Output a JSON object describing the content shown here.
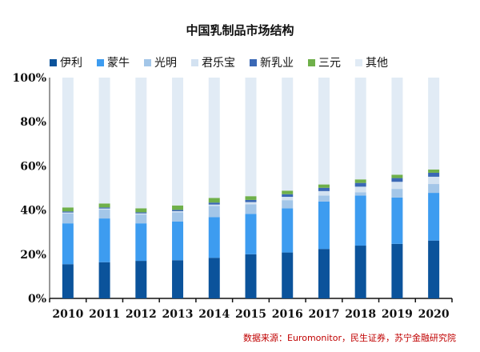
{
  "chart_data": {
    "type": "bar",
    "stacked": true,
    "title": "中国乳制品市场结构",
    "categories": [
      "2010",
      "2011",
      "2012",
      "2013",
      "2014",
      "2015",
      "2016",
      "2017",
      "2018",
      "2019",
      "2020"
    ],
    "ylim": [
      0,
      100
    ],
    "yticks": [
      "0%",
      "20%",
      "40%",
      "60%",
      "80%",
      "100%"
    ],
    "legend_position": "top",
    "grid": false,
    "series": [
      {
        "name": "伊利",
        "color": "#0b539b",
        "values": [
          15.5,
          16.4,
          17.0,
          17.3,
          18.4,
          20.0,
          20.8,
          22.4,
          23.9,
          24.7,
          26.2
        ]
      },
      {
        "name": "蒙牛",
        "color": "#3d9cf0",
        "values": [
          18.5,
          19.8,
          17.0,
          17.5,
          18.4,
          18.3,
          20.0,
          21.5,
          22.7,
          21.0,
          21.6
        ]
      },
      {
        "name": "光明",
        "color": "#a3c6e8",
        "values": [
          4.4,
          4.0,
          4.0,
          4.2,
          5.1,
          4.3,
          3.7,
          2.7,
          1.5,
          3.9,
          4.0
        ]
      },
      {
        "name": "君乐宝",
        "color": "#d3e2f1",
        "values": [
          0.5,
          0.5,
          0.5,
          0.5,
          0.6,
          1.0,
          1.5,
          2.0,
          2.5,
          3.2,
          3.3
        ]
      },
      {
        "name": "新乳业",
        "color": "#3a68b5",
        "values": [
          0.5,
          0.5,
          0.5,
          0.6,
          0.9,
          1.0,
          1.2,
          1.5,
          1.7,
          1.7,
          1.8
        ]
      },
      {
        "name": "三元",
        "color": "#6fb04a",
        "values": [
          1.8,
          1.8,
          1.8,
          2.0,
          2.1,
          1.7,
          1.6,
          1.5,
          1.6,
          1.5,
          1.5
        ]
      },
      {
        "name": "其他",
        "color": "#e1ebf5",
        "values": [
          58.8,
          57.0,
          59.2,
          57.9,
          54.5,
          53.7,
          51.2,
          48.4,
          46.1,
          44.0,
          41.6
        ]
      }
    ]
  },
  "source": "数据来源：Euromonitor，民生证券，苏宁金融研究院"
}
